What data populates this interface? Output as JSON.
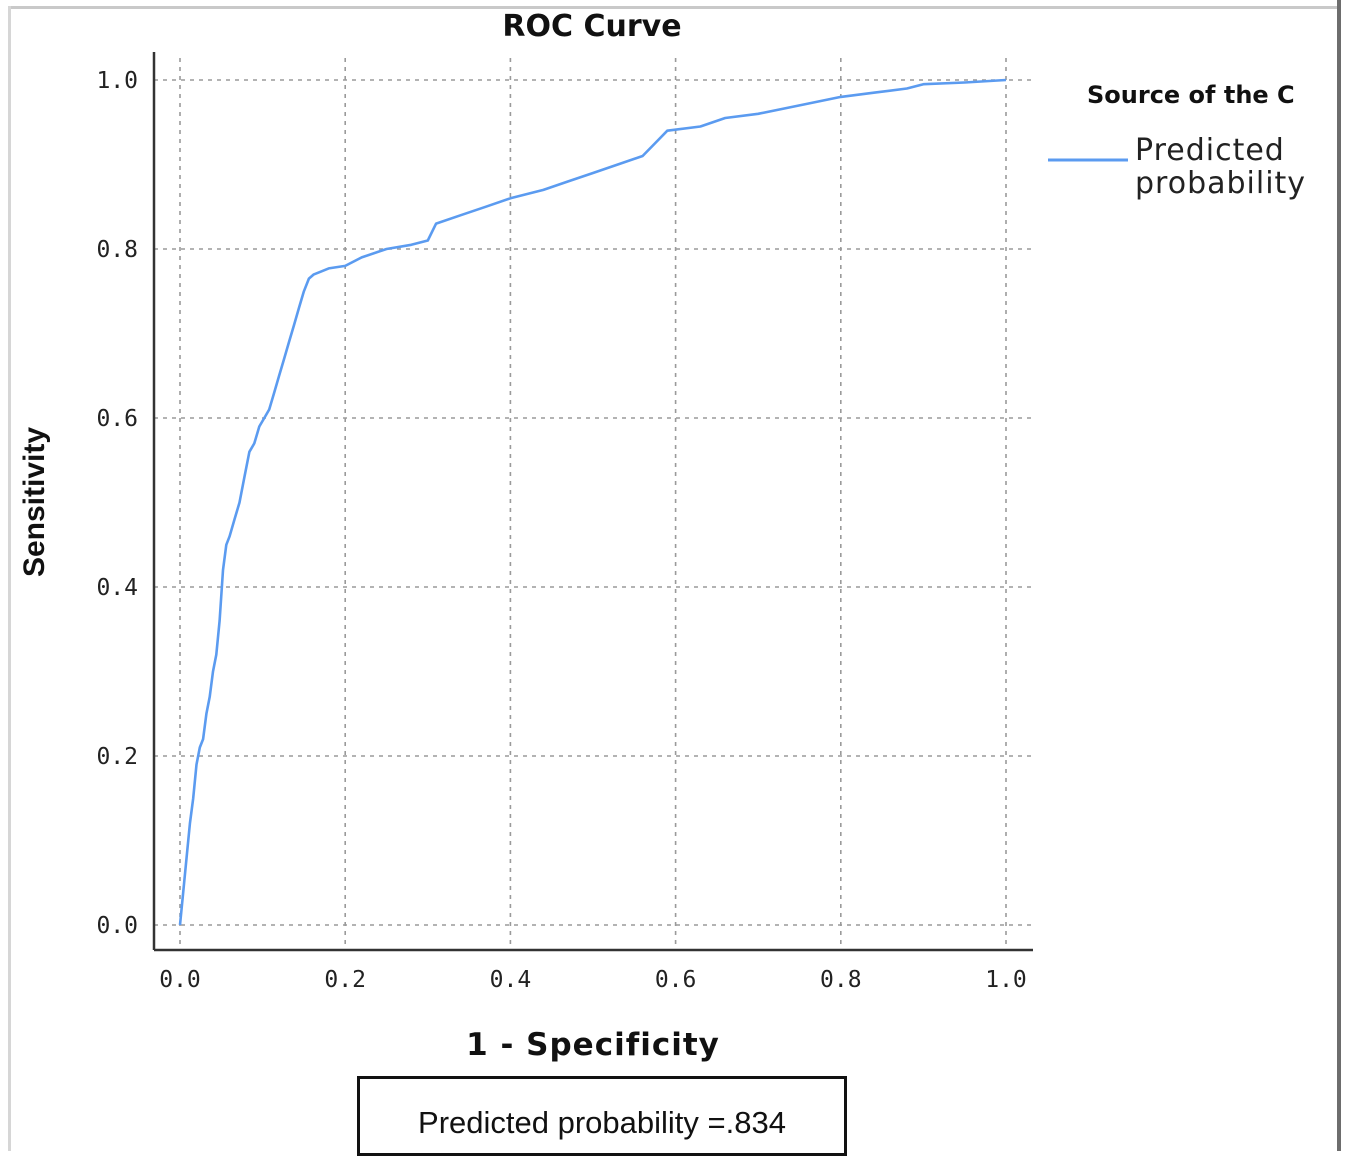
{
  "chart_data": {
    "type": "line",
    "title": "ROC Curve",
    "xlabel": "1 - Specificity",
    "ylabel": "Sensitivity",
    "xlim": [
      0,
      1
    ],
    "ylim": [
      0,
      1
    ],
    "x_ticks": [
      "0.0",
      "0.2",
      "0.4",
      "0.6",
      "0.8",
      "1.0"
    ],
    "y_ticks": [
      "0.0",
      "0.2",
      "0.4",
      "0.6",
      "0.8",
      "1.0"
    ],
    "grid": true,
    "legend": {
      "title": "Source of the C",
      "placement": "right",
      "entries": [
        "Predicted",
        "probability"
      ]
    },
    "series": [
      {
        "name": "Predicted probability",
        "color": "#5b9bf0",
        "x": [
          0.0,
          0.004,
          0.008,
          0.012,
          0.016,
          0.02,
          0.024,
          0.028,
          0.032,
          0.036,
          0.04,
          0.044,
          0.048,
          0.052,
          0.056,
          0.06,
          0.066,
          0.072,
          0.078,
          0.084,
          0.09,
          0.096,
          0.102,
          0.108,
          0.114,
          0.12,
          0.126,
          0.132,
          0.138,
          0.144,
          0.15,
          0.156,
          0.162,
          0.17,
          0.18,
          0.2,
          0.22,
          0.25,
          0.28,
          0.3,
          0.31,
          0.34,
          0.37,
          0.4,
          0.44,
          0.47,
          0.5,
          0.53,
          0.56,
          0.58,
          0.59,
          0.63,
          0.66,
          0.7,
          0.75,
          0.8,
          0.84,
          0.88,
          0.9,
          0.95,
          1.0
        ],
        "y": [
          0.0,
          0.04,
          0.08,
          0.12,
          0.15,
          0.19,
          0.21,
          0.22,
          0.25,
          0.27,
          0.3,
          0.32,
          0.36,
          0.42,
          0.45,
          0.46,
          0.48,
          0.5,
          0.53,
          0.56,
          0.57,
          0.59,
          0.6,
          0.61,
          0.63,
          0.65,
          0.67,
          0.69,
          0.71,
          0.73,
          0.75,
          0.765,
          0.77,
          0.773,
          0.777,
          0.78,
          0.79,
          0.8,
          0.805,
          0.81,
          0.83,
          0.84,
          0.85,
          0.86,
          0.87,
          0.88,
          0.89,
          0.9,
          0.91,
          0.93,
          0.94,
          0.945,
          0.955,
          0.96,
          0.97,
          0.98,
          0.985,
          0.99,
          0.995,
          0.997,
          1.0
        ]
      }
    ],
    "annotation": "Predicted probability =.834"
  }
}
